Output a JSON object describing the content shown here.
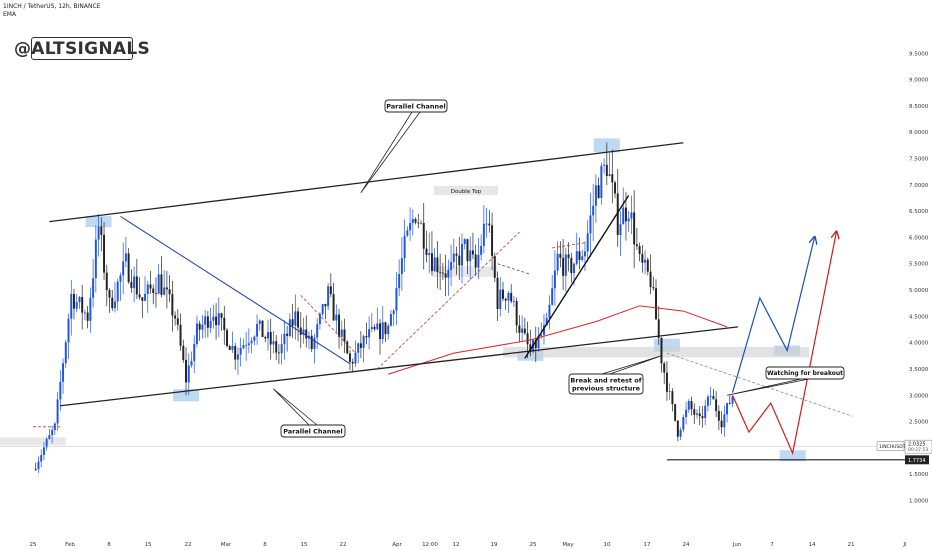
{
  "header": {
    "symbol_line": "1INCH / TetherUS, 12h, BINANCE",
    "indicator": "EMA"
  },
  "brand": {
    "label": "@ALTSIGNALS"
  },
  "chart_data": {
    "type": "candlestick",
    "ylim": [
      0.8,
      10.0
    ],
    "y_ticks": [
      "9.5000",
      "9.0000",
      "8.5000",
      "8.0000",
      "7.5000",
      "7.0000",
      "6.5000",
      "6.0000",
      "5.5000",
      "5.0000",
      "4.5000",
      "4.0000",
      "3.5000",
      "3.0000",
      "2.5000",
      "2.0000",
      "1.5000",
      "1.0000"
    ],
    "x_ticks": [
      "25",
      "Feb",
      "8",
      "15",
      "22",
      "Mar",
      "8",
      "15",
      "22",
      "Apr",
      "12:00",
      "12",
      "19",
      "25",
      "May",
      "10",
      "17",
      "24",
      "Jun",
      "7",
      "14",
      "21",
      "Jl"
    ],
    "price_pivots": [
      {
        "date": "2021-01-25",
        "price": 1.6
      },
      {
        "date": "2021-01-29",
        "price": 2.4
      },
      {
        "date": "2021-02-01",
        "price": 4.9
      },
      {
        "date": "2021-02-04",
        "price": 4.5
      },
      {
        "date": "2021-02-06",
        "price": 6.2
      },
      {
        "date": "2021-02-08",
        "price": 4.7
      },
      {
        "date": "2021-02-11",
        "price": 5.5
      },
      {
        "date": "2021-02-14",
        "price": 4.8
      },
      {
        "date": "2021-02-17",
        "price": 5.2
      },
      {
        "date": "2021-02-20",
        "price": 4.5
      },
      {
        "date": "2021-02-22",
        "price": 3.3
      },
      {
        "date": "2021-02-24",
        "price": 4.2
      },
      {
        "date": "2021-02-27",
        "price": 4.6
      },
      {
        "date": "2021-03-03",
        "price": 3.8
      },
      {
        "date": "2021-03-07",
        "price": 4.3
      },
      {
        "date": "2021-03-11",
        "price": 3.8
      },
      {
        "date": "2021-03-14",
        "price": 4.5
      },
      {
        "date": "2021-03-17",
        "price": 3.9
      },
      {
        "date": "2021-03-20",
        "price": 4.9
      },
      {
        "date": "2021-03-24",
        "price": 3.6
      },
      {
        "date": "2021-03-27",
        "price": 4.1
      },
      {
        "date": "2021-03-31",
        "price": 4.3
      },
      {
        "date": "2021-04-03",
        "price": 5.8
      },
      {
        "date": "2021-04-05",
        "price": 6.5
      },
      {
        "date": "2021-04-08",
        "price": 5.6
      },
      {
        "date": "2021-04-11",
        "price": 5.3
      },
      {
        "date": "2021-04-14",
        "price": 5.8
      },
      {
        "date": "2021-04-16",
        "price": 5.4
      },
      {
        "date": "2021-04-18",
        "price": 6.4
      },
      {
        "date": "2021-04-20",
        "price": 4.8
      },
      {
        "date": "2021-04-22",
        "price": 5.0
      },
      {
        "date": "2021-04-24",
        "price": 4.3
      },
      {
        "date": "2021-04-26",
        "price": 3.8
      },
      {
        "date": "2021-04-29",
        "price": 4.3
      },
      {
        "date": "2021-05-01",
        "price": 5.6
      },
      {
        "date": "2021-05-03",
        "price": 5.4
      },
      {
        "date": "2021-05-06",
        "price": 5.8
      },
      {
        "date": "2021-05-08",
        "price": 6.9
      },
      {
        "date": "2021-05-10",
        "price": 7.4
      },
      {
        "date": "2021-05-12",
        "price": 6.3
      },
      {
        "date": "2021-05-14",
        "price": 6.6
      },
      {
        "date": "2021-05-16",
        "price": 5.5
      },
      {
        "date": "2021-05-18",
        "price": 5.2
      },
      {
        "date": "2021-05-20",
        "price": 3.7
      },
      {
        "date": "2021-05-21",
        "price": 3.2
      },
      {
        "date": "2021-05-23",
        "price": 2.3
      },
      {
        "date": "2021-05-25",
        "price": 2.8
      },
      {
        "date": "2021-05-27",
        "price": 2.5
      },
      {
        "date": "2021-05-29",
        "price": 3.0
      },
      {
        "date": "2021-05-31",
        "price": 2.5
      },
      {
        "date": "2021-06-02",
        "price": 3.0
      }
    ],
    "ema": [
      {
        "date": "2021-03-31",
        "price": 3.4
      },
      {
        "date": "2021-04-12",
        "price": 3.8
      },
      {
        "date": "2021-04-26",
        "price": 4.05
      },
      {
        "date": "2021-05-08",
        "price": 4.4
      },
      {
        "date": "2021-05-16",
        "price": 4.7
      },
      {
        "date": "2021-05-24",
        "price": 4.6
      },
      {
        "date": "2021-06-01",
        "price": 4.3
      }
    ],
    "channel_upper": [
      {
        "date": "2021-01-28",
        "price": 6.3
      },
      {
        "date": "2021-05-24",
        "price": 7.8
      }
    ],
    "channel_lower": [
      {
        "date": "2021-01-30",
        "price": 2.8
      },
      {
        "date": "2021-06-03",
        "price": 4.3
      }
    ],
    "blue_trendline": [
      {
        "date": "2021-02-10",
        "price": 6.4
      },
      {
        "date": "2021-03-24",
        "price": 3.6
      }
    ],
    "black_trendline": [
      {
        "date": "2021-04-25",
        "price": 3.7
      },
      {
        "date": "2021-05-14",
        "price": 6.8
      }
    ],
    "support_level": {
      "price": 1.7734,
      "from": "2021-05-21",
      "to": "2021-06-24"
    },
    "projections": {
      "blue": [
        {
          "date": "2021-06-02",
          "price": 3.05
        },
        {
          "date": "2021-06-07",
          "price": 4.85
        },
        {
          "date": "2021-06-12",
          "price": 3.85
        },
        {
          "date": "2021-06-17",
          "price": 6.0
        }
      ],
      "red": [
        {
          "date": "2021-06-02",
          "price": 3.0
        },
        {
          "date": "2021-06-05",
          "price": 2.3
        },
        {
          "date": "2021-06-09",
          "price": 2.85
        },
        {
          "date": "2021-06-13",
          "price": 1.9
        },
        {
          "date": "2021-06-21",
          "price": 6.1
        }
      ]
    },
    "current_price": "2.0325",
    "current_price_symbol": "1INCHUSDT",
    "countdown": "00:27:13",
    "support_label": "1.7734",
    "annotations": [
      {
        "id": "upper_channel",
        "lines": [
          "Parallel Channel"
        ]
      },
      {
        "id": "lower_channel",
        "lines": [
          "Parallel Channel"
        ]
      },
      {
        "id": "double_top",
        "lines": [
          "Double Top"
        ]
      },
      {
        "id": "break_retest",
        "lines": [
          "Break and retest of",
          "previous structure"
        ]
      },
      {
        "id": "breakout",
        "lines": [
          "Watching for breakout"
        ]
      }
    ],
    "grid": false,
    "colors": {
      "up": "#1e53e5",
      "down": "#222222",
      "ema": "#d9282f",
      "blue_path": "#1c4fb8",
      "red_path": "#c81e1e",
      "highlight": "#a9ccf0",
      "trendline": "#1e40af"
    }
  }
}
